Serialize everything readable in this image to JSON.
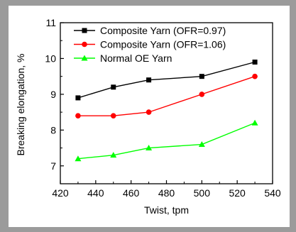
{
  "chart_data": {
    "type": "line",
    "xlabel": "Twist, tpm",
    "ylabel": "Breaking elongation, %",
    "xlim": [
      420,
      540
    ],
    "ylim": [
      6.5,
      11
    ],
    "xticks": [
      420,
      440,
      460,
      480,
      500,
      520,
      540
    ],
    "yticks": [
      7,
      8,
      9,
      10,
      11
    ],
    "grid": false,
    "legend": "top-left",
    "series": [
      {
        "name": "Composite Yarn (OFR=0.97)",
        "color": "#000000",
        "marker": "square",
        "x": [
          430,
          450,
          470,
          500,
          530
        ],
        "y": [
          8.9,
          9.2,
          9.4,
          9.5,
          9.9
        ]
      },
      {
        "name": "Composite Yarn (OFR=1.06)",
        "color": "#ff0000",
        "marker": "circle",
        "x": [
          430,
          450,
          470,
          500,
          530
        ],
        "y": [
          8.4,
          8.4,
          8.5,
          9.0,
          9.5
        ]
      },
      {
        "name": "Normal OE Yarn",
        "color": "#00ff00",
        "marker": "triangle",
        "x": [
          430,
          450,
          470,
          500,
          530
        ],
        "y": [
          7.2,
          7.3,
          7.5,
          7.6,
          8.2
        ]
      }
    ]
  }
}
